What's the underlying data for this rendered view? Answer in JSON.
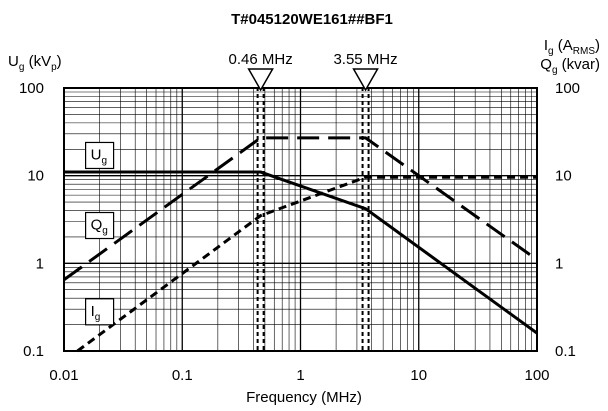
{
  "chart_data": {
    "type": "line",
    "title": "T#045120WE161##BF1",
    "xlabel": "Frequency (MHz)",
    "x_scale": "log",
    "y_scale": "log",
    "xlim": [
      0.01,
      100
    ],
    "ylim": [
      0.1,
      100
    ],
    "grid": true,
    "x_ticks": [
      "0.01",
      "0.1",
      "1",
      "10",
      "100"
    ],
    "y_ticks": [
      "0.1",
      "1",
      "10",
      "100"
    ],
    "left_axis_label": {
      "main": "U",
      "sub": "g",
      "unit_open": " (kV",
      "unit_sub": "p",
      "unit_close": ")"
    },
    "right_axis_label_1": {
      "main": "I",
      "sub": "g",
      "unit_open": " (A",
      "unit_sub": "RMS",
      "unit_close": ")"
    },
    "right_axis_label_2": {
      "main": "Q",
      "sub": "g",
      "unit_open": " (kvar)",
      "unit_sub": "",
      "unit_close": ""
    },
    "markers": [
      {
        "label": "0.46 MHz",
        "x": 0.46
      },
      {
        "label": "3.55 MHz",
        "x": 3.55
      }
    ],
    "series": [
      {
        "label_main": "U",
        "label_sub": "g",
        "style": "solid",
        "x": [
          0.01,
          0.46,
          3.55,
          100
        ],
        "y": [
          11,
          11,
          4.2,
          0.16
        ],
        "label_pos": [
          0.02,
          17
        ]
      },
      {
        "label_main": "Q",
        "label_sub": "g",
        "style": "long-dash",
        "x": [
          0.01,
          0.46,
          3.55,
          100
        ],
        "y": [
          0.65,
          27,
          27,
          1.1
        ],
        "label_pos": [
          0.02,
          2.7
        ]
      },
      {
        "label_main": "I",
        "label_sub": "g",
        "style": "short-dash",
        "x": [
          0.013,
          0.46,
          3.55,
          100
        ],
        "y": [
          0.1,
          3.5,
          9.6,
          9.6
        ],
        "label_pos": [
          0.02,
          0.28
        ]
      }
    ]
  }
}
